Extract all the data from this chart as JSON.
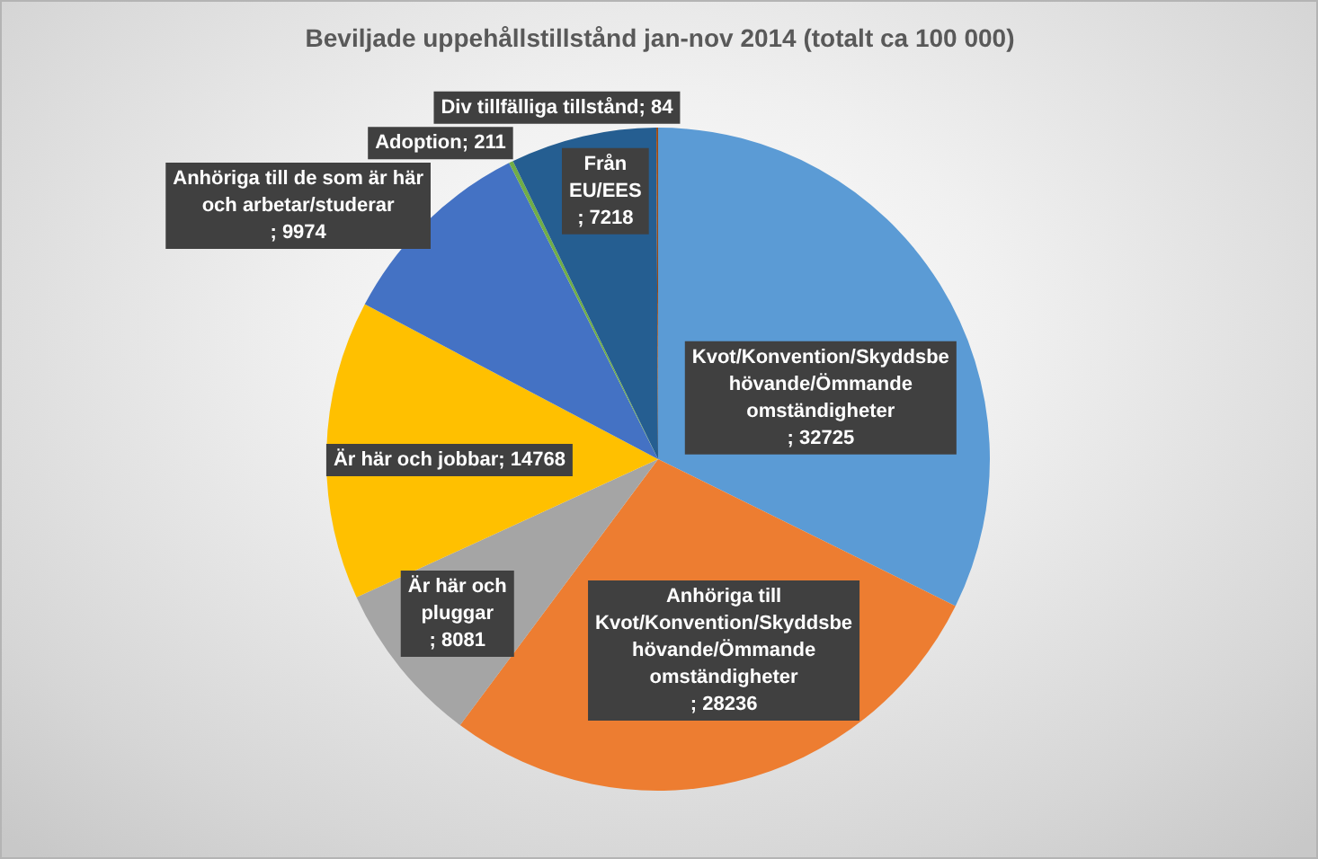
{
  "chart_data": {
    "type": "pie",
    "title": "Beviljade uppehållstillstånd jan-nov 2014 (totalt ca 100 000)",
    "categories": [
      "Kvot/Konvention/Skyddsbehövande/Ömmande omständigheter",
      "Anhöriga till Kvot/Konvention/Skyddsbehövande/Ömmande omständigheter",
      "Är här och pluggar",
      "Är här och jobbar",
      "Anhöriga till de som är här och arbetar/studerar",
      "Adoption",
      "Från EU/EES",
      "Div tillfälliga tillstånd"
    ],
    "values": [
      32725,
      28236,
      8081,
      14768,
      9974,
      211,
      7218,
      84
    ],
    "value_labels": [
      "; 32725",
      "; 28236",
      "; 8081",
      "; 14768",
      "; 9974",
      "; 211",
      "; 7218",
      "; 84"
    ],
    "colors": [
      "#5b9bd5",
      "#ed7d31",
      "#a5a5a5",
      "#ffc000",
      "#4472c4",
      "#70ad47",
      "#255e91",
      "#9e480e"
    ]
  }
}
